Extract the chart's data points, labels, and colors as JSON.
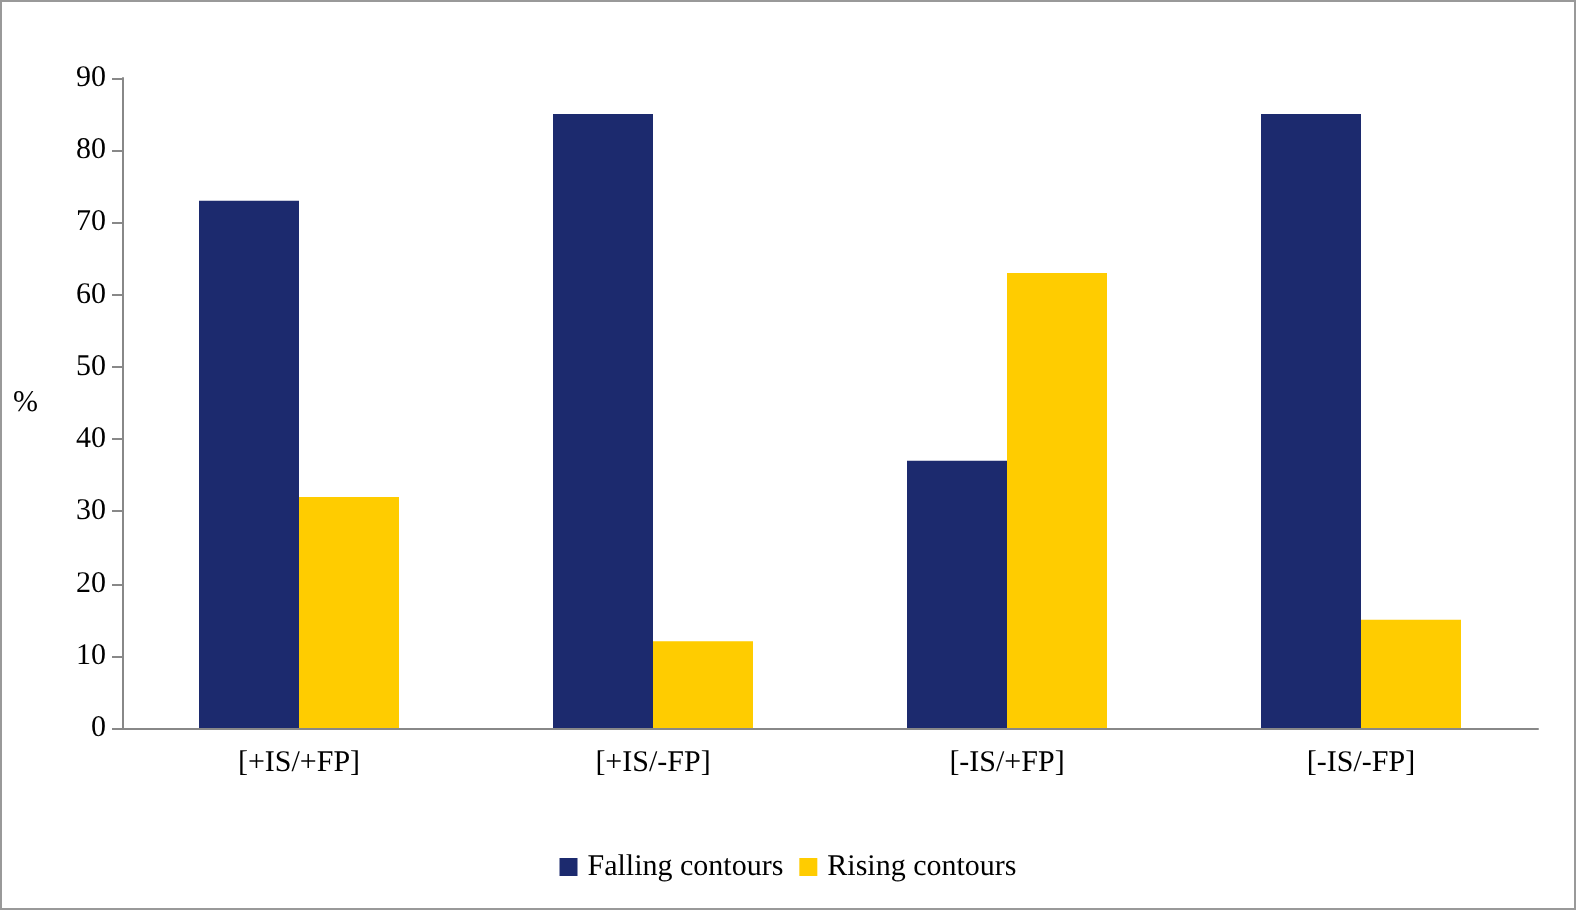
{
  "chart_data": {
    "type": "bar",
    "ylabel": "%",
    "categories": [
      "[+IS/+FP]",
      "[+IS/-FP]",
      "[-IS/+FP]",
      "[-IS/-FP]"
    ],
    "series": [
      {
        "name": "Falling contours",
        "color": "#1c2a6e",
        "values": [
          73,
          85,
          37,
          85
        ]
      },
      {
        "name": "Rising contours",
        "color": "#ffcc00",
        "values": [
          32,
          12,
          63,
          15
        ]
      }
    ],
    "ylim": [
      0,
      90
    ],
    "yticks": [
      0,
      10,
      20,
      30,
      40,
      50,
      60,
      70,
      80,
      90
    ],
    "grid": false,
    "legend": "bottom"
  }
}
